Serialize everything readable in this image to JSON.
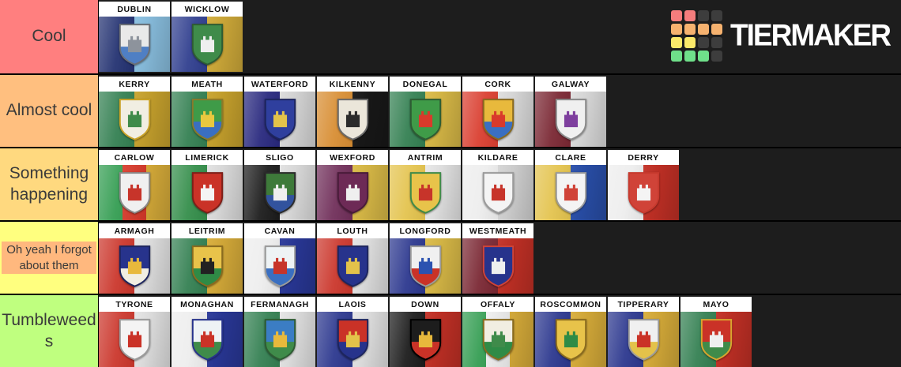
{
  "page": {
    "background": "#1d1d1d"
  },
  "logo": {
    "text": "TIERMAKER",
    "grid_colors": [
      [
        "#f47d7d",
        "#f47d7d",
        "#3d3d3d",
        "#3d3d3d"
      ],
      [
        "#f6b26f",
        "#f6b26f",
        "#f6b26f",
        "#f6b26f"
      ],
      [
        "#fbe96a",
        "#fbe96a",
        "#3d3d3d",
        "#3d3d3d"
      ],
      [
        "#6fe08a",
        "#6fe08a",
        "#6fe08a",
        "#3d3d3d"
      ]
    ]
  },
  "tiers": [
    {
      "label": "Cool",
      "color": "#FF7F7F",
      "small": false,
      "highlight": false,
      "items": [
        {
          "name": "DUBLIN",
          "stripes": [
            "#1e2d6e",
            "#8fc7e9"
          ],
          "shield": "#e9e9e9",
          "accent": "#4f7fc4",
          "charge": "#8d939c",
          "rim": "#6b6f75"
        },
        {
          "name": "WICKLOW",
          "stripes": [
            "#2b3a8c",
            "#d9b23c"
          ],
          "shield": "#3f8b4a",
          "accent": "#3f8b4a",
          "charge": "#efefef",
          "rim": "#2e5c33"
        }
      ]
    },
    {
      "label": "Almost cool",
      "color": "#FFBF7F",
      "small": false,
      "highlight": false,
      "items": [
        {
          "name": "KERRY",
          "stripes": [
            "#2f7d4e",
            "#d0a92f"
          ],
          "shield": "#f1eee2",
          "accent": "#f1eee2",
          "charge": "#3f8b4a",
          "rim": "#c9a227"
        },
        {
          "name": "MEATH",
          "stripes": [
            "#2f7d4e",
            "#d0a92f"
          ],
          "shield": "#3f9b48",
          "accent": "#3a6fc1",
          "charge": "#e9c83f",
          "rim": "#8a7a2a"
        },
        {
          "name": "WATERFORD",
          "stripes": [
            "#23237b",
            "#e3e3e3"
          ],
          "shield": "#2f3f9e",
          "accent": "#2f3f9e",
          "charge": "#e3c24a",
          "rim": "#1d255f"
        },
        {
          "name": "KILKENNY",
          "stripes": [
            "#d78b2e",
            "#191919"
          ],
          "shield": "#ebe6da",
          "accent": "#ebe6da",
          "charge": "#2b2b2b",
          "rim": "#6b6b6b"
        },
        {
          "name": "DONEGAL",
          "stripes": [
            "#2f7d4e",
            "#e3c24a"
          ],
          "shield": "#3f9b48",
          "accent": "#3f9b48",
          "charge": "#d93a2b",
          "rim": "#2e5c33"
        },
        {
          "name": "CORK",
          "stripes": [
            "#d93a2b",
            "#e6e6e6"
          ],
          "shield": "#e8b93c",
          "accent": "#3a6fc1",
          "charge": "#d93a2b",
          "rim": "#8a6b1f"
        },
        {
          "name": "GALWAY",
          "stripes": [
            "#77222e",
            "#e6e6e6"
          ],
          "shield": "#f0f0f0",
          "accent": "#f0f0f0",
          "charge": "#7e3f9e",
          "rim": "#8b8b8b"
        }
      ]
    },
    {
      "label": "Something happening",
      "color": "#FFD97F",
      "small": false,
      "highlight": false,
      "items": [
        {
          "name": "CARLOW",
          "stripes": [
            "#2f9b4e",
            "#d93a2b",
            "#e0b33c"
          ],
          "shield": "#f0f0f0",
          "accent": "#f0f0f0",
          "charge": "#c7342a",
          "rim": "#8b8b8b"
        },
        {
          "name": "LIMERICK",
          "stripes": [
            "#2f8b46",
            "#e9e9e9"
          ],
          "shield": "#ca3227",
          "accent": "#ca3227",
          "charge": "#f4f4f4",
          "rim": "#7e1f18"
        },
        {
          "name": "SLIGO",
          "stripes": [
            "#161616",
            "#e9e9e9"
          ],
          "shield": "#3e7a3a",
          "accent": "#32539e",
          "charge": "#efefef",
          "rim": "#2b2b2b"
        },
        {
          "name": "WEXFORD",
          "stripes": [
            "#6d2a56",
            "#e3c24a"
          ],
          "shield": "#6d2a56",
          "accent": "#6d2a56",
          "charge": "#efefef",
          "rim": "#4a1c3a"
        },
        {
          "name": "ANTRIM",
          "stripes": [
            "#e3c24a",
            "#f0f0f0"
          ],
          "shield": "#e8c34a",
          "accent": "#e8c34a",
          "charge": "#c7342a",
          "rim": "#3f8b4a"
        },
        {
          "name": "KILDARE",
          "stripes": [
            "#ededed",
            "#dcdcdc"
          ],
          "shield": "#f4f4f4",
          "accent": "#f4f4f4",
          "charge": "#c7342a",
          "rim": "#9b9b9b"
        },
        {
          "name": "CLARE",
          "stripes": [
            "#e3c24a",
            "#2b52b0"
          ],
          "shield": "#f4f4f4",
          "accent": "#f4f4f4",
          "charge": "#d04338",
          "rim": "#9b9b9b"
        },
        {
          "name": "DERRY",
          "stripes": [
            "#ededed",
            "#ca3227"
          ],
          "shield": "#d04338",
          "accent": "#d04338",
          "charge": "#f4f4f4",
          "rim": "#c73a2e"
        }
      ]
    },
    {
      "label": "Oh yeah I forgot about them",
      "color": "#FFFF7F",
      "small": true,
      "highlight": true,
      "highlight_color": "#FFB87E",
      "items": [
        {
          "name": "ARMAGH",
          "stripes": [
            "#ca3227",
            "#ededed"
          ],
          "shield": "#27338c",
          "accent": "#f1eee2",
          "charge": "#e8b93c",
          "rim": "#1d255f"
        },
        {
          "name": "LEITRIM",
          "stripes": [
            "#2f7d4e",
            "#e0b33c"
          ],
          "shield": "#e8c34a",
          "accent": "#2f8b46",
          "charge": "#222222",
          "rim": "#8a6b1f"
        },
        {
          "name": "CAVAN",
          "stripes": [
            "#ededed",
            "#2b3a9e"
          ],
          "shield": "#eef3f5",
          "accent": "#3a6fc1",
          "charge": "#c7342a",
          "rim": "#9b9b9b"
        },
        {
          "name": "LOUTH",
          "stripes": [
            "#ca3227",
            "#ededed"
          ],
          "shield": "#27338c",
          "accent": "#27338c",
          "charge": "#e3c24a",
          "rim": "#1d255f"
        },
        {
          "name": "LONGFORD",
          "stripes": [
            "#27338c",
            "#e3c24a"
          ],
          "shield": "#f0f0f0",
          "accent": "#ca3227",
          "charge": "#2b52b0",
          "rim": "#9b9b9b"
        },
        {
          "name": "WESTMEATH",
          "stripes": [
            "#77222e",
            "#ca3227"
          ],
          "shield": "#27338c",
          "accent": "#27338c",
          "charge": "#efefef",
          "rim": "#d04338"
        }
      ]
    },
    {
      "label": "Tumbleweeds",
      "color": "#BFFF7F",
      "small": false,
      "highlight": false,
      "items": [
        {
          "name": "TYRONE",
          "stripes": [
            "#ca3227",
            "#ededed"
          ],
          "shield": "#f4f4f4",
          "accent": "#f4f4f4",
          "charge": "#ca3227",
          "rim": "#9b9b9b"
        },
        {
          "name": "MONAGHAN",
          "stripes": [
            "#ededed",
            "#2b3a9e"
          ],
          "shield": "#eef3f5",
          "accent": "#3f8b4a",
          "charge": "#ca3227",
          "rim": "#27338c"
        },
        {
          "name": "FERMANAGH",
          "stripes": [
            "#2f7d4e",
            "#ededed"
          ],
          "shield": "#3b7dc4",
          "accent": "#3f8b4a",
          "charge": "#e8b93c",
          "rim": "#2e5c33"
        },
        {
          "name": "LAOIS",
          "stripes": [
            "#27338c",
            "#ededed"
          ],
          "shield": "#ca3227",
          "accent": "#27338c",
          "charge": "#e3c24a",
          "rim": "#1d255f"
        },
        {
          "name": "DOWN",
          "stripes": [
            "#161616",
            "#ca3227"
          ],
          "shield": "#1d1d1d",
          "accent": "#ca3227",
          "charge": "#e8b93c",
          "rim": "#000000"
        },
        {
          "name": "OFFALY",
          "stripes": [
            "#2f9b4e",
            "#f0f0f0",
            "#e0b33c"
          ],
          "shield": "#f1eee2",
          "accent": "#2f8b46",
          "charge": "#3f8b4a",
          "rim": "#8a6b1f"
        },
        {
          "name": "ROSCOMMON",
          "stripes": [
            "#27338c",
            "#e0b33c"
          ],
          "shield": "#e8c34a",
          "accent": "#e8c34a",
          "charge": "#2f8b46",
          "rim": "#8a6b1f"
        },
        {
          "name": "TIPPERARY",
          "stripes": [
            "#27338c",
            "#e0b33c"
          ],
          "shield": "#f0f0f0",
          "accent": "#e3c24a",
          "charge": "#ca3227",
          "rim": "#9b9b9b"
        },
        {
          "name": "MAYO",
          "stripes": [
            "#2f7d4e",
            "#ca3227"
          ],
          "shield": "#ca3227",
          "accent": "#3f8b4a",
          "charge": "#efefef",
          "rim": "#d9a62e"
        }
      ]
    }
  ]
}
